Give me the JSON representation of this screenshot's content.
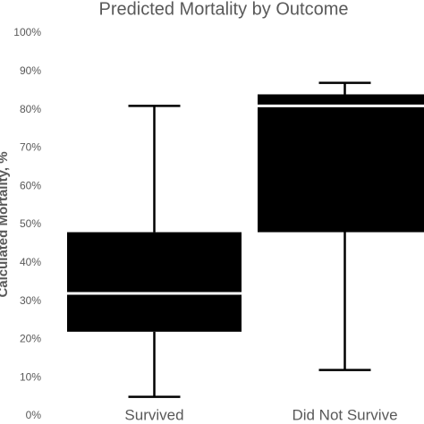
{
  "chart_data": {
    "type": "box",
    "title": "Predicted Mortality by Outcome",
    "y_label": "Calculated Mortality, %",
    "categories": [
      "Survived",
      "Did Not Survive"
    ],
    "min": [
      5,
      12
    ],
    "q1": [
      22,
      48
    ],
    "median": [
      32,
      81
    ],
    "q3": [
      48,
      84
    ],
    "max": [
      81,
      87
    ],
    "color": "#000000",
    "median_color": "#ffffff",
    "ylim": [
      0,
      100
    ],
    "yticks": [
      {
        "value": 0,
        "label": "0%"
      },
      {
        "value": 10,
        "label": "10%"
      },
      {
        "value": 20,
        "label": "20%"
      },
      {
        "value": 30,
        "label": "30%"
      },
      {
        "value": 40,
        "label": "40%"
      },
      {
        "value": 50,
        "label": "50%"
      },
      {
        "value": 60,
        "label": "60%"
      },
      {
        "value": 70,
        "label": "70%"
      },
      {
        "value": 80,
        "label": "80%"
      },
      {
        "value": 90,
        "label": "90%"
      },
      {
        "value": 100,
        "label": "100%"
      }
    ],
    "grid": false
  }
}
